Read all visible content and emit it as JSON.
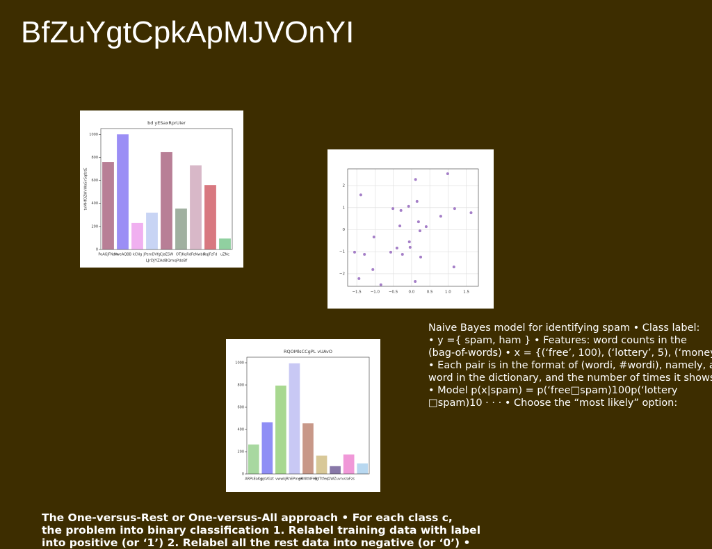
{
  "header": {
    "title": "BfZuYgtCpkApMJVOnYI"
  },
  "chart_data": [
    {
      "type": "bar",
      "title": "bd yESaxRprUier",
      "x_label": "LJrDJYZAdBQmqPdsBf",
      "y_label": "txMHfOZWvWoSirSqtbtE",
      "categories": [
        "PoAGJFNaw",
        "NweAQBB",
        "kCNg",
        "JPemDVfg",
        "CJaESW",
        "OTJKq",
        "RdFeNwbb",
        "RqJFzFd",
        "uZNc"
      ],
      "values": [
        760,
        1000,
        230,
        320,
        845,
        355,
        730,
        560,
        95
      ],
      "colors": [
        "#b87f96",
        "#9b8ef5",
        "#f0b0f0",
        "#c8d4f4",
        "#b87f96",
        "#a0b0a0",
        "#d8b8c8",
        "#d87880",
        "#90d0a0"
      ],
      "ylim": [
        0,
        1050
      ],
      "yticks": [
        0,
        200,
        400,
        600,
        800,
        1000
      ]
    },
    {
      "type": "scatter",
      "x": [
        -1.39,
        0.11,
        0.99,
        0.15,
        -0.08,
        -0.29,
        -0.51,
        1.18,
        1.63,
        0.8,
        0.19,
        0.4,
        -0.32,
        0.23,
        -1.03,
        -0.06,
        -0.04,
        -0.4,
        -1.56,
        -1.29,
        -0.57,
        -0.25,
        0.25,
        -1.06,
        1.16,
        -1.44,
        0.1,
        -0.84
      ],
      "y": [
        1.58,
        2.28,
        2.54,
        1.28,
        1.06,
        0.87,
        0.96,
        0.96,
        0.77,
        0.61,
        0.36,
        0.14,
        0.17,
        -0.05,
        -0.33,
        -0.55,
        -0.8,
        -0.83,
        -1.02,
        -1.12,
        -1.02,
        -1.12,
        -1.24,
        -1.81,
        -1.69,
        -2.22,
        -2.35,
        -2.5
      ],
      "color": "#9467bd",
      "grid": true,
      "xlim": [
        -1.75,
        1.83
      ],
      "ylim": [
        -2.57,
        2.76
      ],
      "xticks": [
        {
          "value": -1.5,
          "label": "−1.5"
        },
        {
          "value": -1,
          "label": "−1.0"
        },
        {
          "value": -0.5,
          "label": "−0.5"
        },
        {
          "value": 0,
          "label": "0.0"
        },
        0.5,
        {
          "value": 1,
          "label": "1.0"
        },
        1.5
      ],
      "yticks": [
        {
          "value": -2,
          "label": "−2"
        },
        {
          "value": -1,
          "label": "−1"
        },
        0,
        1,
        2
      ]
    },
    {
      "type": "bar",
      "title": "RQOMlsCCgPL vUAvO",
      "categories": [
        "ARPsEaKg",
        "gjsVGzt",
        "vwwkj",
        "RhEPmgK",
        "eHNltNFHy",
        "BJlTtfeq",
        "QWZuvn",
        "vzaFzs",
        null
      ],
      "values": [
        265,
        465,
        795,
        995,
        455,
        165,
        70,
        175,
        95
      ],
      "colors": [
        "#a8d8a0",
        "#8f8ef5",
        "#a8d890",
        "#c8c8f4",
        "#c89888",
        "#d8c898",
        "#8878a8",
        "#f098d8",
        "#b8d8f0"
      ],
      "ylim": [
        0,
        1050
      ],
      "yticks": [
        0,
        200,
        400,
        600,
        800,
        1000
      ]
    }
  ],
  "text_block": {
    "lines": [
      "Naive Bayes model for identifying spam • Class label:",
      "• y ={ spam, ham } • Features: word counts in the",
      "(bag-of-words) • x = {(‘free’, 100), (‘lottery’, 5), (‘money’,",
      "• Each pair is in the format of (wordi, #wordi), namely, a",
      "word in the dictionary, and the number of times it shows",
      "• Model p(x|spam) = p(‘free□spam)100p(‘lottery",
      "□spam)10 · · · • Choose the “most likely” option:"
    ]
  },
  "footer": {
    "lines": [
      "The One-versus-Rest or One-versus-All approach • For each class c,",
      "the problem into binary classification 1. Relabel training data with label",
      "into positive (or ‘1’) 2. Relabel all the rest data into negative (or ‘0’) •"
    ]
  }
}
